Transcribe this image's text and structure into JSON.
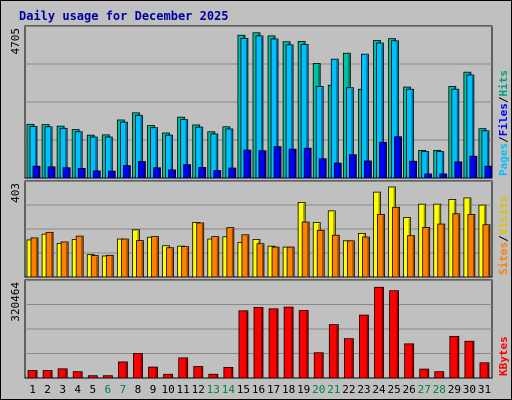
{
  "chart_data": {
    "title": "Daily usage for December 2025",
    "type": "bar",
    "categories": [
      "1",
      "2",
      "3",
      "4",
      "5",
      "6",
      "7",
      "8",
      "9",
      "10",
      "11",
      "12",
      "13",
      "14",
      "15",
      "16",
      "17",
      "18",
      "19",
      "20",
      "21",
      "22",
      "23",
      "24",
      "25",
      "26",
      "27",
      "28",
      "29",
      "30",
      "31"
    ],
    "weekend_days": [
      "6",
      "7",
      "13",
      "14",
      "20",
      "21",
      "27",
      "28"
    ],
    "panels": [
      {
        "id": "pages-files-hits",
        "ymax_label": "4705",
        "ymax": 4705,
        "axis_title": [
          "Pages",
          "Files",
          "Hits"
        ],
        "series": [
          {
            "name": "Hits",
            "color": "#00c0a0",
            "values": [
              1730,
              1720,
              1670,
              1560,
              1380,
              1390,
              1870,
              2100,
              1690,
              1450,
              1960,
              1710,
              1490,
              1650,
              4600,
              4680,
              4580,
              4390,
              4400,
              3690,
              2990,
              4020,
              2860,
              4430,
              4490,
              2930,
              890,
              890,
              2950,
              3410,
              1590
            ]
          },
          {
            "name": "Files",
            "color": "#00c0ff",
            "values": [
              1660,
              1650,
              1600,
              1490,
              1320,
              1320,
              1800,
              2020,
              1620,
              1380,
              1880,
              1640,
              1420,
              1580,
              4500,
              4580,
              4480,
              4290,
              4300,
              2950,
              3830,
              2910,
              3990,
              4350,
              4420,
              2860,
              850,
              850,
              2860,
              3320,
              1520
            ]
          },
          {
            "name": "Pages",
            "color": "#0000ff",
            "values": [
              380,
              360,
              330,
              310,
              230,
              220,
              400,
              530,
              330,
              260,
              430,
              340,
              240,
              320,
              900,
              880,
              1010,
              930,
              960,
              620,
              480,
              750,
              550,
              1150,
              1330,
              540,
              130,
              130,
              520,
              700,
              380
            ]
          }
        ]
      },
      {
        "id": "visits-sites",
        "ymax_label": "403",
        "ymax": 403,
        "axis_title": [
          "Sites",
          "Visits"
        ],
        "series": [
          {
            "name": "Visits",
            "color": "#ffff00",
            "values": [
              166,
              192,
              150,
              168,
              100,
              94,
              170,
              211,
              178,
              140,
              138,
              244,
              170,
              180,
              155,
              168,
              138,
              134,
              334,
              244,
              296,
              162,
              195,
              380,
              403,
              266,
              326,
              326,
              347,
              354,
              322
            ]
          },
          {
            "name": "Sites",
            "color": "#ff8000",
            "values": [
              175,
              200,
              157,
              183,
              96,
              97,
              170,
              163,
              181,
              131,
              136,
              242,
              181,
              221,
              189,
              149,
              134,
              134,
              246,
              209,
              187,
              162,
              179,
              280,
              312,
              185,
              222,
              237,
              283,
              280,
              234
            ]
          }
        ]
      },
      {
        "id": "kbytes",
        "ymax_label": "320464",
        "ymax": 320464,
        "axis_title": [
          "KBytes"
        ],
        "series": [
          {
            "name": "KBytes",
            "color": "#ff0000",
            "values": [
              26000,
              26000,
              32000,
              22000,
              8000,
              8000,
              56000,
              85000,
              38000,
              13000,
              70000,
              40000,
              13000,
              37000,
              234000,
              246000,
              241000,
              247000,
              235000,
              88000,
              186000,
              137000,
              219000,
              316000,
              304000,
              119000,
              31000,
              22000,
              145000,
              128000,
              53000
            ]
          }
        ]
      }
    ]
  }
}
